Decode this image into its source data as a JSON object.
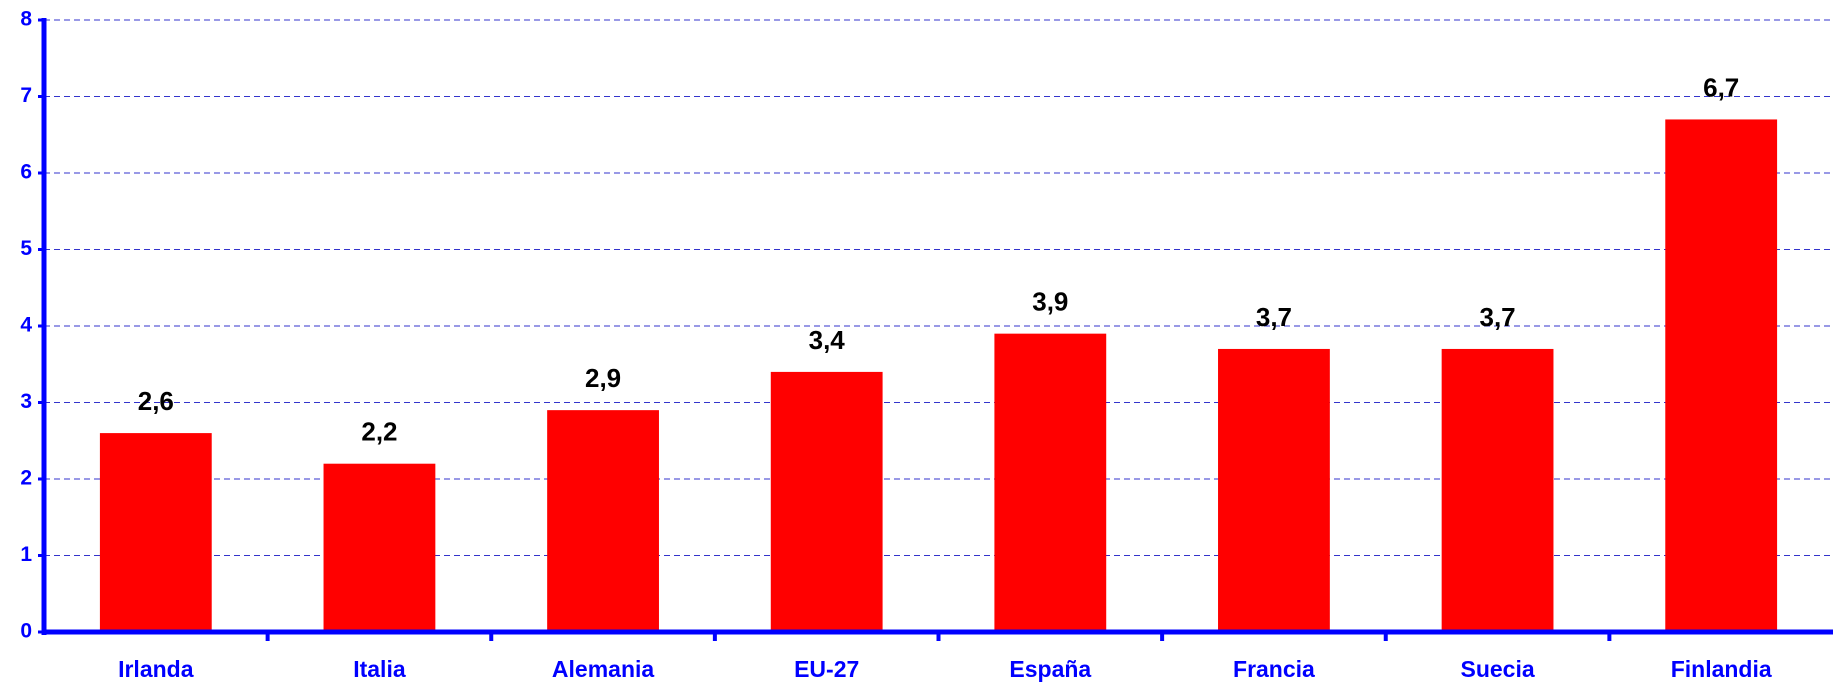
{
  "chart_data": {
    "type": "bar",
    "categories": [
      "Irlanda",
      "Italia",
      "Alemania",
      "EU-27",
      "España",
      "Francia",
      "Suecia",
      "Finlandia"
    ],
    "values": [
      2.6,
      2.2,
      2.9,
      3.4,
      3.9,
      3.7,
      3.7,
      6.7
    ],
    "value_labels": [
      "2,6",
      "2,2",
      "2,9",
      "3,4",
      "3,9",
      "3,7",
      "3,7",
      "6,7"
    ],
    "color": "#ff0000",
    "ylim": [
      0,
      8
    ],
    "yticks": [
      0,
      1,
      2,
      3,
      4,
      5,
      6,
      7,
      8
    ],
    "grid": true
  }
}
